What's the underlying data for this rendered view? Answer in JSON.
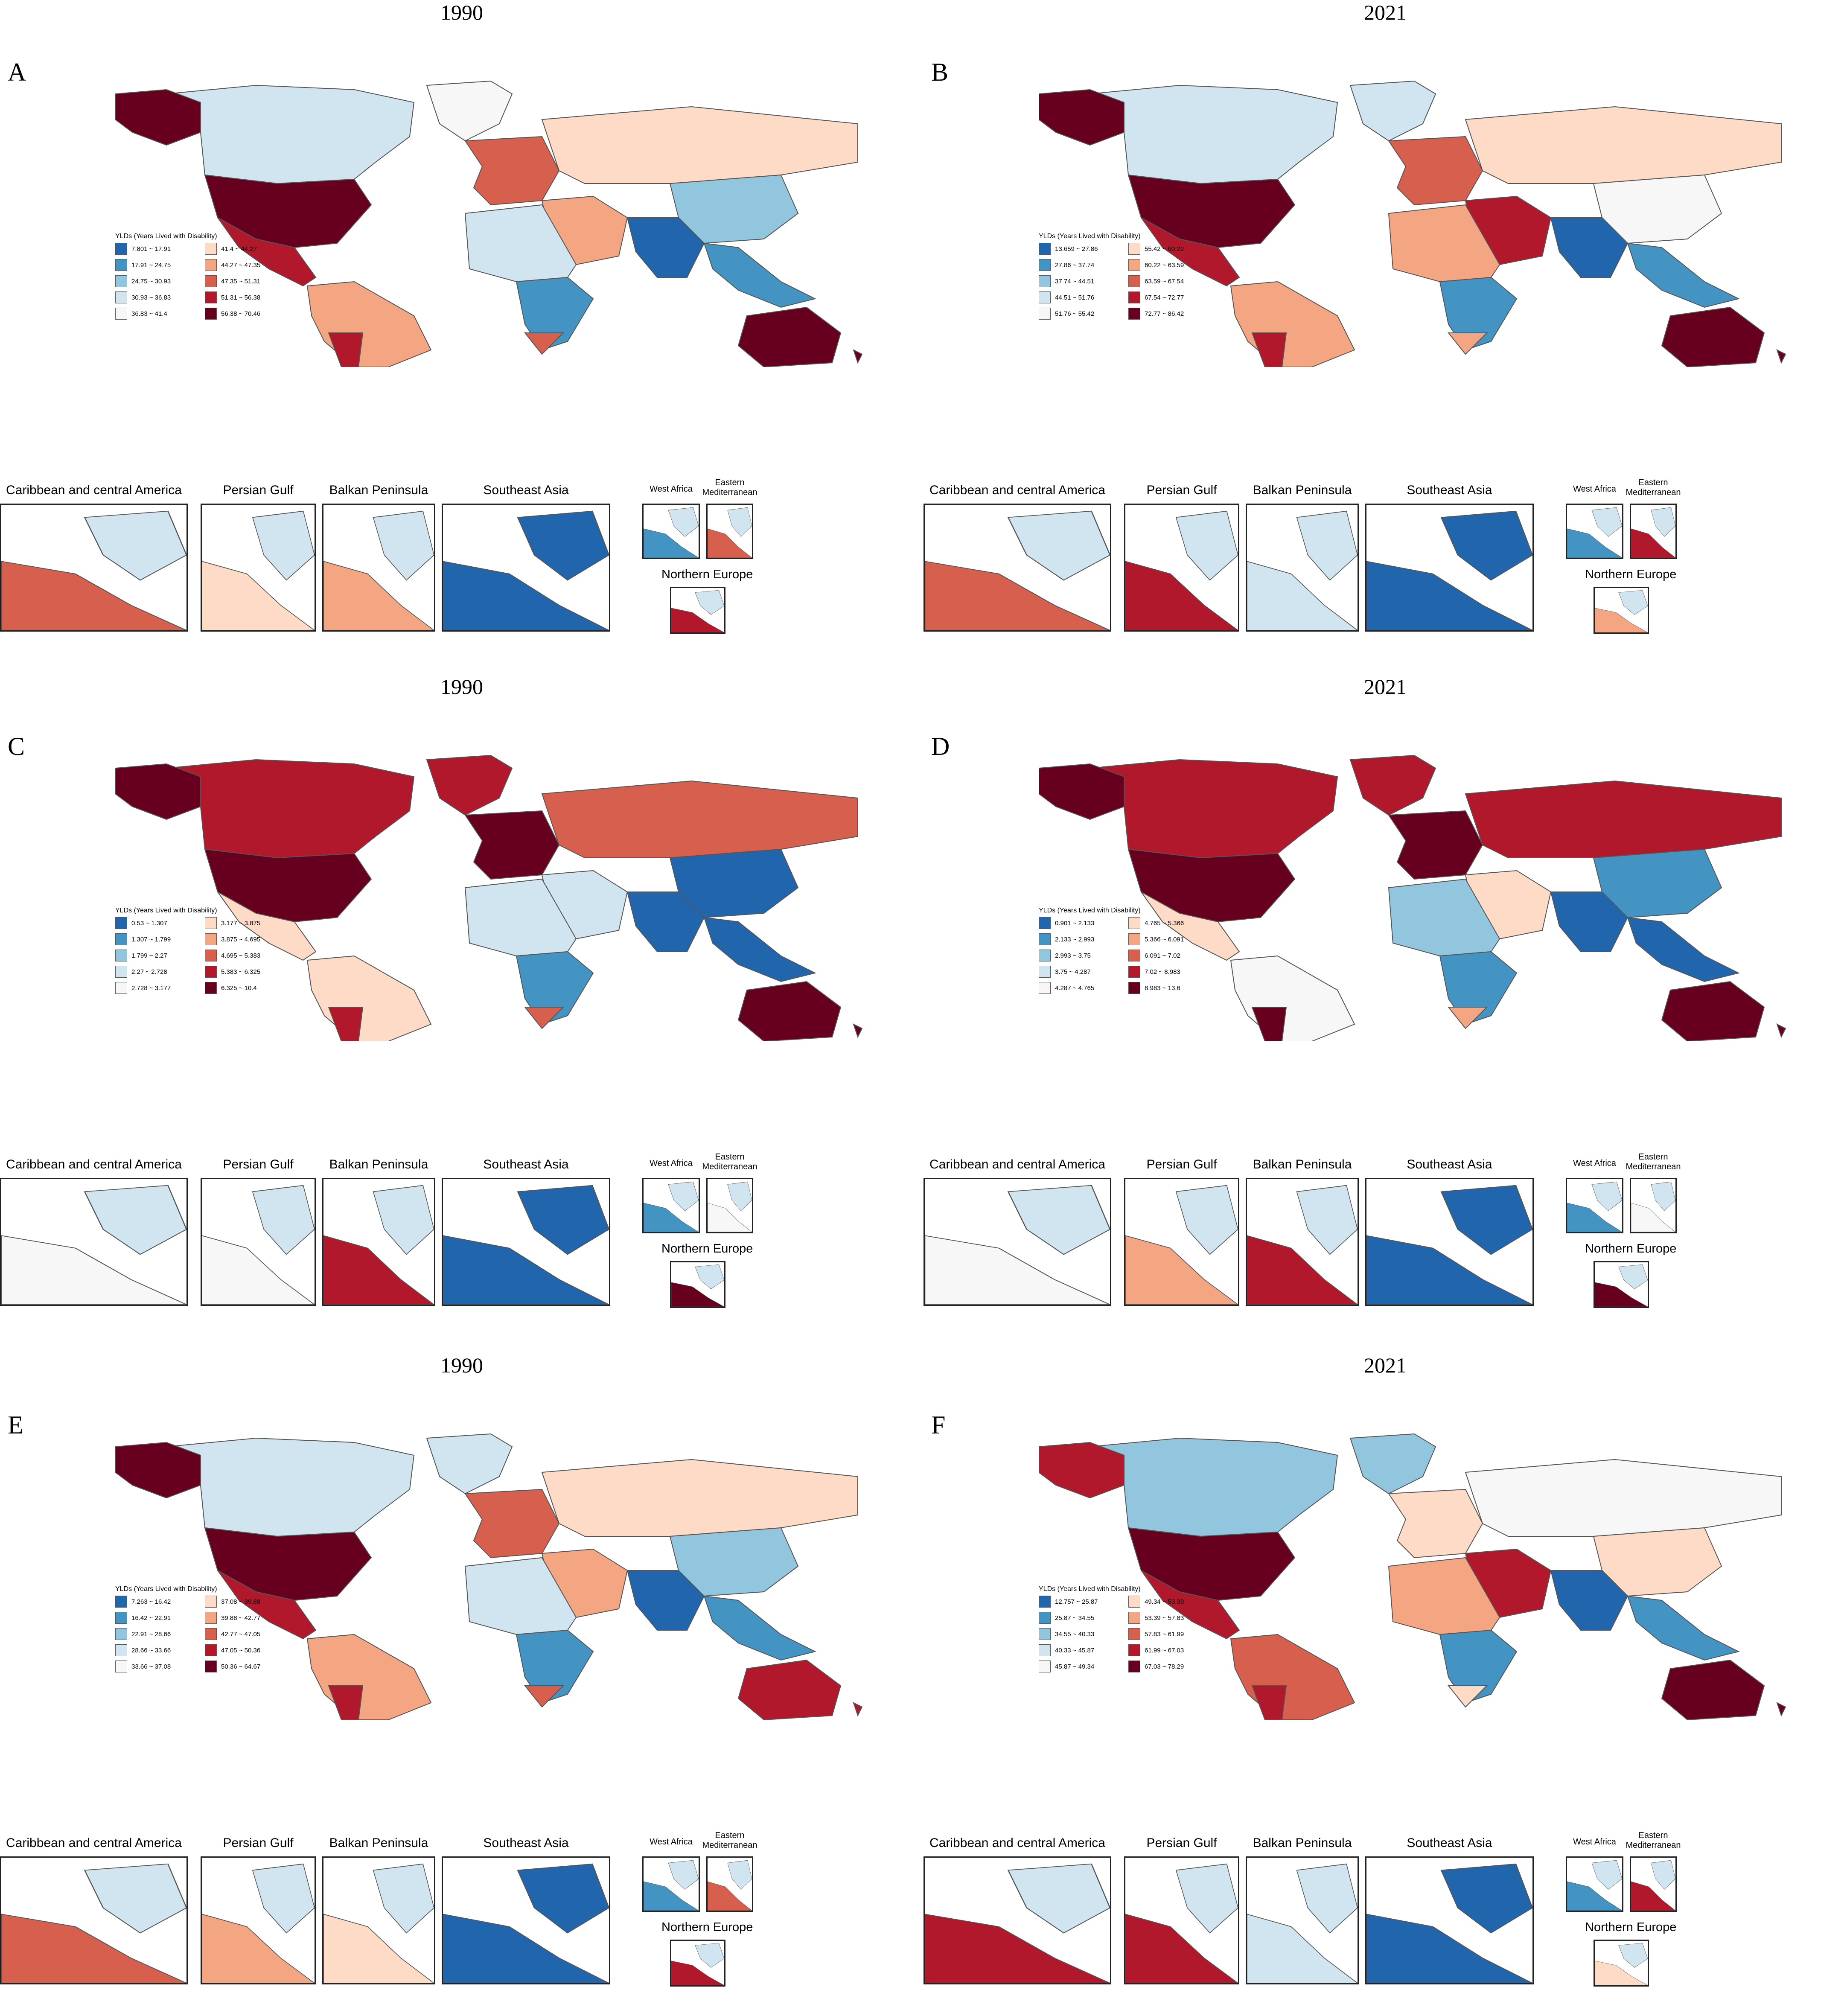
{
  "inset_titles": {
    "caribbean": "Caribbean and central America",
    "persian_gulf": "Persian Gulf",
    "balkan": "Balkan Peninsula",
    "southeast_asia": "Southeast Asia",
    "west_africa": "West Africa",
    "eastern_med": "Eastern\nMediterranean",
    "northern_europe": "Northern Europe"
  },
  "palette": [
    "#2166ac",
    "#4393c3",
    "#92c5de",
    "#d1e5f0",
    "#f7f7f7",
    "#fddbc7",
    "#f4a582",
    "#d6604d",
    "#b2182b",
    "#67001f"
  ],
  "panels": [
    {
      "letter": "A",
      "year": "1990",
      "legend_title": "YLDs (Years Lived with Disability)",
      "legend": [
        "7.801 ~ 17.91",
        "17.91 ~ 24.75",
        "24.75 ~ 30.93",
        "30.93 ~ 36.83",
        "36.83 ~ 41.4",
        "41.4 ~ 44.27",
        "44.27 ~ 47.35",
        "47.35 ~ 51.31",
        "51.31 ~ 56.38",
        "56.38 ~ 70.46"
      ],
      "insets": {
        "caribbean": 7,
        "persian_gulf": 5,
        "balkan": 6,
        "southeast_asia": 0,
        "west_africa": 1,
        "eastern_med": 7,
        "northern_europe": 8
      }
    },
    {
      "letter": "B",
      "year": "2021",
      "legend_title": "YLDs (Years Lived with Disability)",
      "legend": [
        "13.659 ~ 27.86",
        "27.86 ~ 37.74",
        "37.74 ~ 44.51",
        "44.51 ~ 51.76",
        "51.76 ~ 55.42",
        "55.42 ~ 60.22",
        "60.22 ~ 63.59",
        "63.59 ~ 67.54",
        "67.54 ~ 72.77",
        "72.77 ~ 86.42"
      ],
      "insets": {
        "caribbean": 7,
        "persian_gulf": 8,
        "balkan": 3,
        "southeast_asia": 0,
        "west_africa": 1,
        "eastern_med": 8,
        "northern_europe": 6
      }
    },
    {
      "letter": "C",
      "year": "1990",
      "legend_title": "YLDs (Years Lived with Disability)",
      "legend": [
        "0.53 ~ 1.307",
        "1.307 ~ 1.799",
        "1.799 ~ 2.27",
        "2.27 ~ 2.728",
        "2.728 ~ 3.177",
        "3.177 ~ 3.875",
        "3.875 ~ 4.695",
        "4.695 ~ 5.383",
        "5.383 ~ 6.325",
        "6.325 ~ 10.4"
      ],
      "insets": {
        "caribbean": 4,
        "persian_gulf": 4,
        "balkan": 8,
        "southeast_asia": 0,
        "west_africa": 1,
        "eastern_med": 4,
        "northern_europe": 9
      }
    },
    {
      "letter": "D",
      "year": "2021",
      "legend_title": "YLDs (Years Lived with Disability)",
      "legend": [
        "0.901 ~ 2.133",
        "2.133 ~ 2.993",
        "2.993 ~ 3.75",
        "3.75 ~ 4.287",
        "4.287 ~ 4.765",
        "4.765 ~ 5.366",
        "5.366 ~ 6.091",
        "6.091 ~ 7.02",
        "7.02 ~ 8.983",
        "8.983 ~ 13.6"
      ],
      "insets": {
        "caribbean": 4,
        "persian_gulf": 6,
        "balkan": 8,
        "southeast_asia": 0,
        "west_africa": 1,
        "eastern_med": 4,
        "northern_europe": 9
      }
    },
    {
      "letter": "E",
      "year": "1990",
      "legend_title": "YLDs (Years Lived with Disability)",
      "legend": [
        "7.263 ~ 16.42",
        "16.42 ~ 22.91",
        "22.91 ~ 28.66",
        "28.66 ~ 33.66",
        "33.66 ~ 37.08",
        "37.08 ~ 39.88",
        "39.88 ~ 42.77",
        "42.77 ~ 47.05",
        "47.05 ~ 50.36",
        "50.36 ~ 64.67"
      ],
      "insets": {
        "caribbean": 7,
        "persian_gulf": 6,
        "balkan": 5,
        "southeast_asia": 0,
        "west_africa": 1,
        "eastern_med": 7,
        "northern_europe": 8
      }
    },
    {
      "letter": "F",
      "year": "2021",
      "legend_title": "YLDs (Years Lived with Disability)",
      "legend": [
        "12.757 ~ 25.87",
        "25.87 ~ 34.55",
        "34.55 ~ 40.33",
        "40.33 ~ 45.87",
        "45.87 ~ 49.34",
        "49.34 ~ 53.39",
        "53.39 ~ 57.83",
        "57.83 ~ 61.99",
        "61.99 ~ 67.03",
        "67.03 ~ 78.29"
      ],
      "insets": {
        "caribbean": 8,
        "persian_gulf": 8,
        "balkan": 3,
        "southeast_asia": 0,
        "west_africa": 1,
        "eastern_med": 8,
        "northern_europe": 5
      }
    }
  ],
  "region_classes": {
    "A": {
      "north_america": 3,
      "alaska": 9,
      "usa": 9,
      "mexico": 8,
      "south_america": 6,
      "argentina": 8,
      "greenland": 4,
      "europe": 7,
      "russia": 5,
      "china": 2,
      "india": 0,
      "africa_n": 3,
      "africa_s": 1,
      "south_africa": 7,
      "middle_east": 6,
      "australia": 9,
      "se_asia": 1
    },
    "B": {
      "north_america": 3,
      "alaska": 9,
      "usa": 9,
      "mexico": 8,
      "south_america": 6,
      "argentina": 8,
      "greenland": 3,
      "europe": 7,
      "russia": 5,
      "china": 4,
      "india": 0,
      "africa_n": 6,
      "africa_s": 1,
      "south_africa": 6,
      "middle_east": 8,
      "australia": 9,
      "se_asia": 1
    },
    "C": {
      "north_america": 8,
      "alaska": 9,
      "usa": 9,
      "mexico": 5,
      "south_america": 5,
      "argentina": 8,
      "greenland": 8,
      "europe": 9,
      "russia": 7,
      "china": 0,
      "india": 0,
      "africa_n": 3,
      "africa_s": 1,
      "south_africa": 7,
      "middle_east": 3,
      "australia": 9,
      "se_asia": 0
    },
    "D": {
      "north_america": 8,
      "alaska": 9,
      "usa": 9,
      "mexico": 5,
      "south_america": 4,
      "argentina": 9,
      "greenland": 8,
      "europe": 9,
      "russia": 8,
      "china": 1,
      "india": 0,
      "africa_n": 2,
      "africa_s": 1,
      "south_africa": 6,
      "middle_east": 5,
      "australia": 9,
      "se_asia": 0
    },
    "E": {
      "north_america": 3,
      "alaska": 9,
      "usa": 9,
      "mexico": 8,
      "south_america": 6,
      "argentina": 8,
      "greenland": 3,
      "europe": 7,
      "russia": 5,
      "china": 2,
      "india": 0,
      "africa_n": 3,
      "africa_s": 1,
      "south_africa": 7,
      "middle_east": 6,
      "australia": 8,
      "se_asia": 1
    },
    "F": {
      "north_america": 2,
      "alaska": 8,
      "usa": 9,
      "mexico": 8,
      "south_america": 7,
      "argentina": 8,
      "greenland": 2,
      "europe": 5,
      "russia": 4,
      "china": 5,
      "india": 0,
      "africa_n": 6,
      "africa_s": 1,
      "south_africa": 5,
      "middle_east": 8,
      "australia": 9,
      "se_asia": 1
    }
  }
}
